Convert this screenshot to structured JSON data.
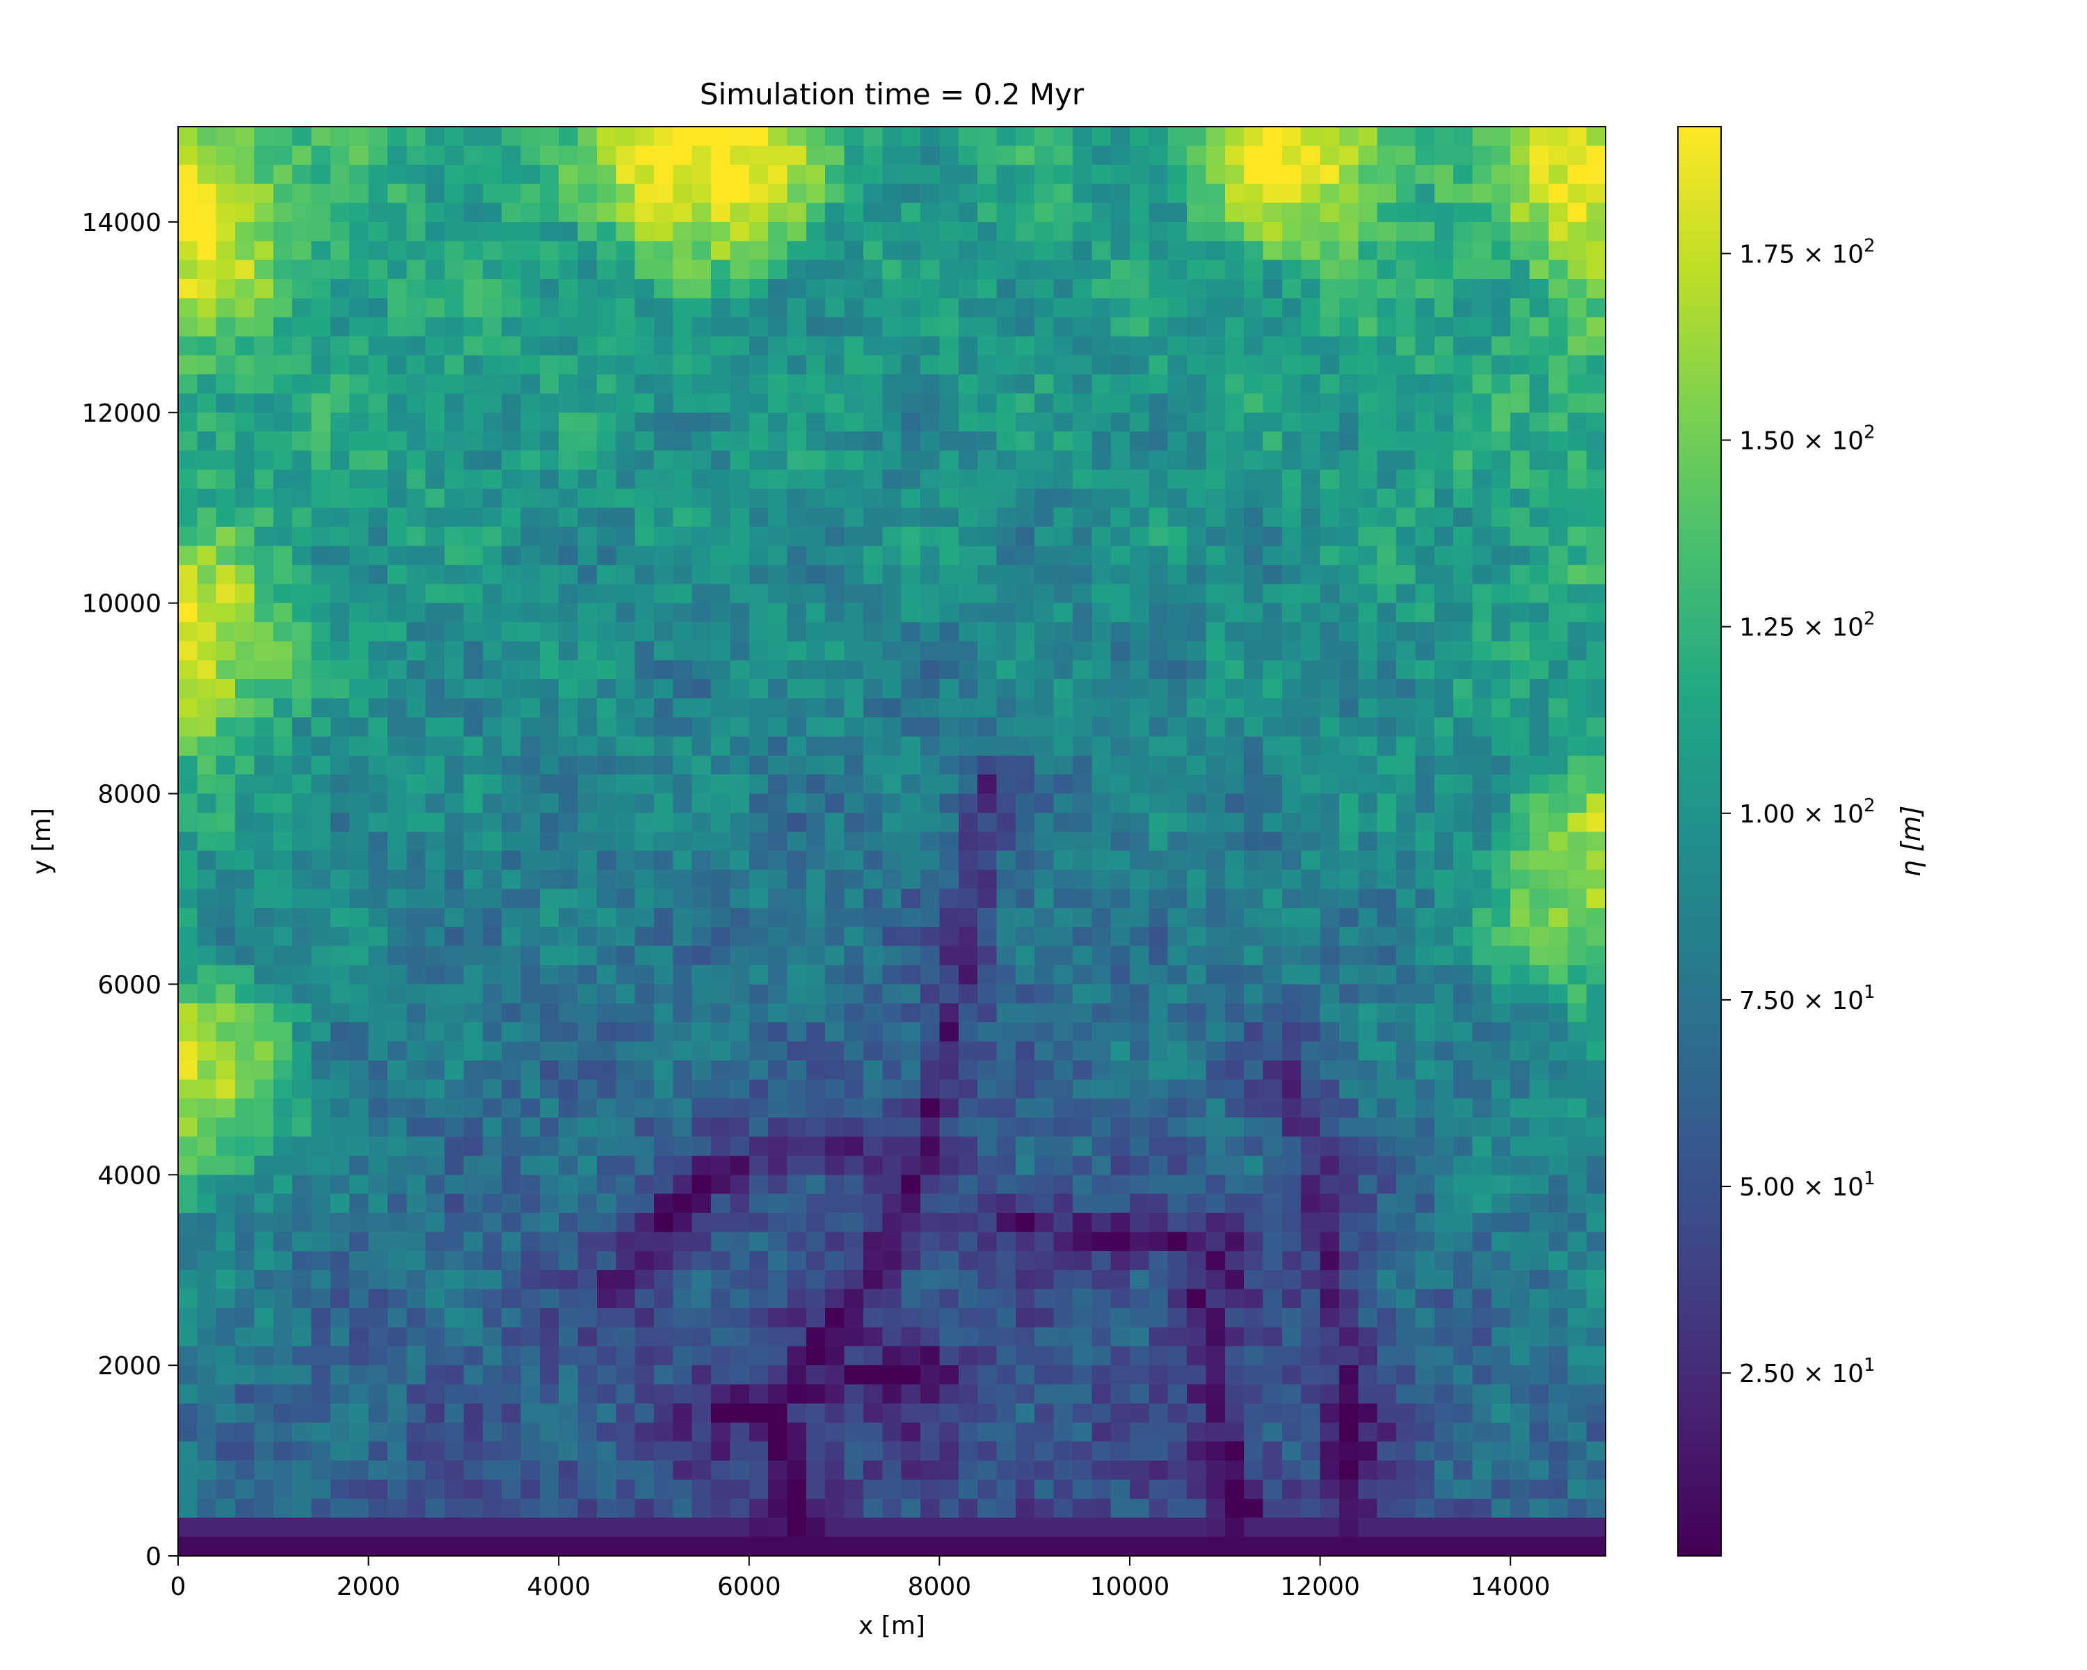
{
  "chart_data": {
    "type": "heatmap",
    "title": "Simulation time = 0.2 Myr",
    "xlabel": "x [m]",
    "ylabel": "y [m]",
    "xlim": [
      0,
      15000
    ],
    "ylim": [
      0,
      15000
    ],
    "x_ticks": [
      "0",
      "2000",
      "4000",
      "6000",
      "8000",
      "10000",
      "12000",
      "14000"
    ],
    "x_tick_values": [
      0,
      2000,
      4000,
      6000,
      8000,
      10000,
      12000,
      14000
    ],
    "y_ticks": [
      "0",
      "2000",
      "4000",
      "6000",
      "8000",
      "10000",
      "12000",
      "14000"
    ],
    "y_tick_values": [
      0,
      2000,
      4000,
      6000,
      8000,
      10000,
      12000,
      14000
    ],
    "grid": false,
    "colormap": "viridis",
    "grid_cells": [
      75,
      75
    ],
    "colorbar": {
      "label": "η [m]",
      "range": [
        0.5,
        192
      ],
      "tick_values": [
        25,
        50,
        75,
        100,
        125,
        150,
        175
      ],
      "tick_mantissas": [
        "2.50",
        "5.00",
        "7.50",
        "1.00",
        "1.25",
        "1.50",
        "1.75"
      ],
      "tick_exponents": [
        "1",
        "1",
        "1",
        "2",
        "2",
        "2",
        "2"
      ],
      "tick_base": "10"
    },
    "features": {
      "high_zones": [
        {
          "x": 5500,
          "y": 14800,
          "value": 192
        },
        {
          "x": 0,
          "y": 14000,
          "value": 180
        },
        {
          "x": 0,
          "y": 9600,
          "value": 172
        },
        {
          "x": 11800,
          "y": 14800,
          "value": 176
        },
        {
          "x": 15000,
          "y": 14500,
          "value": 180
        },
        {
          "x": 15000,
          "y": 7100,
          "value": 160
        },
        {
          "x": 0,
          "y": 5000,
          "value": 160
        }
      ],
      "major_valleys": [
        {
          "points": [
            [
              6500,
              0
            ],
            [
              6300,
              1600
            ],
            [
              7100,
              2500
            ],
            [
              7800,
              4200
            ],
            [
              8200,
              5900
            ],
            [
              8500,
              8200
            ]
          ]
        },
        {
          "points": [
            [
              11200,
              0
            ],
            [
              11000,
              1400
            ],
            [
              10700,
              2600
            ],
            [
              11200,
              3400
            ],
            [
              10000,
              3300
            ],
            [
              8700,
              3500
            ]
          ]
        },
        {
          "points": [
            [
              12400,
              0
            ],
            [
              12300,
              1700
            ],
            [
              12100,
              3300
            ],
            [
              11700,
              5200
            ]
          ]
        },
        {
          "points": [
            [
              5800,
              1500
            ],
            [
              6800,
              1800
            ],
            [
              7900,
              2000
            ]
          ]
        },
        {
          "points": [
            [
              4700,
              2800
            ],
            [
              5400,
              3900
            ],
            [
              6600,
              4400
            ],
            [
              7200,
              4100
            ]
          ]
        }
      ]
    }
  }
}
